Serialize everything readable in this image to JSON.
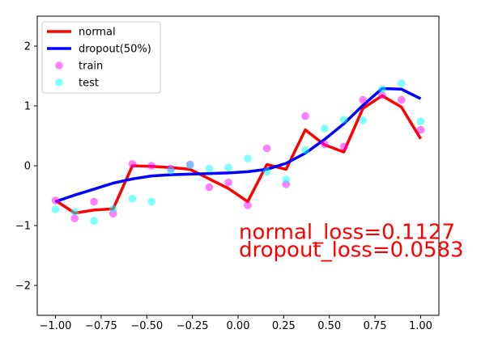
{
  "chart_data": {
    "type": "line",
    "title": "",
    "xlabel": "",
    "ylabel": "",
    "xlim": [
      -1.1,
      1.1
    ],
    "ylim": [
      -2.5,
      2.5
    ],
    "x_ticks": [
      -1.0,
      -0.75,
      -0.5,
      -0.25,
      0.0,
      0.25,
      0.5,
      0.75,
      1.0
    ],
    "x_tick_labels": [
      "−1.00",
      "−0.75",
      "−0.50",
      "−0.25",
      "0.00",
      "0.25",
      "0.50",
      "0.75",
      "1.00"
    ],
    "y_ticks": [
      -2,
      -1,
      0,
      1,
      2
    ],
    "y_tick_labels": [
      "−2",
      "−1",
      "0",
      "1",
      "2"
    ],
    "grid": false,
    "legend_position": "top-left",
    "lines": [
      {
        "name": "normal",
        "color": "#ff0000",
        "x": [
          -1.0,
          -0.895,
          -0.789,
          -0.684,
          -0.579,
          -0.474,
          -0.368,
          -0.263,
          -0.158,
          -0.053,
          0.053,
          0.158,
          0.263,
          0.368,
          0.474,
          0.579,
          0.684,
          0.789,
          0.895,
          1.0
        ],
        "y": [
          -0.58,
          -0.79,
          -0.74,
          -0.72,
          0.0,
          -0.01,
          -0.03,
          -0.06,
          -0.22,
          -0.38,
          -0.6,
          0.02,
          -0.06,
          0.6,
          0.35,
          0.23,
          0.96,
          1.17,
          0.98,
          0.45
        ]
      },
      {
        "name": "dropout(50%)",
        "color": "#0000ff",
        "x": [
          -1.0,
          -0.895,
          -0.789,
          -0.684,
          -0.579,
          -0.474,
          -0.368,
          -0.263,
          -0.158,
          -0.053,
          0.053,
          0.158,
          0.263,
          0.368,
          0.474,
          0.579,
          0.684,
          0.789,
          0.895,
          1.0
        ],
        "y": [
          -0.6,
          -0.49,
          -0.39,
          -0.29,
          -0.22,
          -0.17,
          -0.15,
          -0.14,
          -0.13,
          -0.12,
          -0.1,
          -0.06,
          0.04,
          0.21,
          0.44,
          0.7,
          1.01,
          1.29,
          1.28,
          1.12
        ]
      }
    ],
    "scatter": [
      {
        "name": "train",
        "color": "#ff00ff",
        "x": [
          -1.0,
          -0.895,
          -0.789,
          -0.684,
          -0.579,
          -0.474,
          -0.368,
          -0.263,
          -0.158,
          -0.053,
          0.053,
          0.158,
          0.263,
          0.368,
          0.474,
          0.579,
          0.684,
          0.789,
          0.895,
          1.0
        ],
        "y": [
          -0.58,
          -0.88,
          -0.6,
          -0.8,
          0.03,
          0.0,
          -0.05,
          0.02,
          -0.36,
          -0.28,
          -0.66,
          0.29,
          -0.31,
          0.83,
          0.36,
          0.32,
          1.1,
          1.18,
          1.1,
          0.6
        ]
      },
      {
        "name": "test",
        "color": "#00ffff",
        "x": [
          -1.0,
          -0.895,
          -0.789,
          -0.684,
          -0.579,
          -0.474,
          -0.368,
          -0.263,
          -0.158,
          -0.053,
          0.053,
          0.158,
          0.263,
          0.368,
          0.474,
          0.579,
          0.684,
          0.789,
          0.895,
          1.0
        ],
        "y": [
          -0.73,
          -0.77,
          -0.92,
          -0.72,
          -0.55,
          -0.6,
          -0.08,
          0.01,
          -0.05,
          -0.03,
          0.12,
          -0.1,
          -0.23,
          0.26,
          0.62,
          0.77,
          0.76,
          1.28,
          1.38,
          0.74
        ]
      }
    ],
    "annotations": [
      {
        "text": "normal_loss=0.1127",
        "x": 0.0,
        "y": -1.1,
        "color": "#ff0000"
      },
      {
        "text": "dropout_loss=0.0583",
        "x": 0.0,
        "y": -1.4,
        "color": "#ff0000"
      }
    ]
  }
}
